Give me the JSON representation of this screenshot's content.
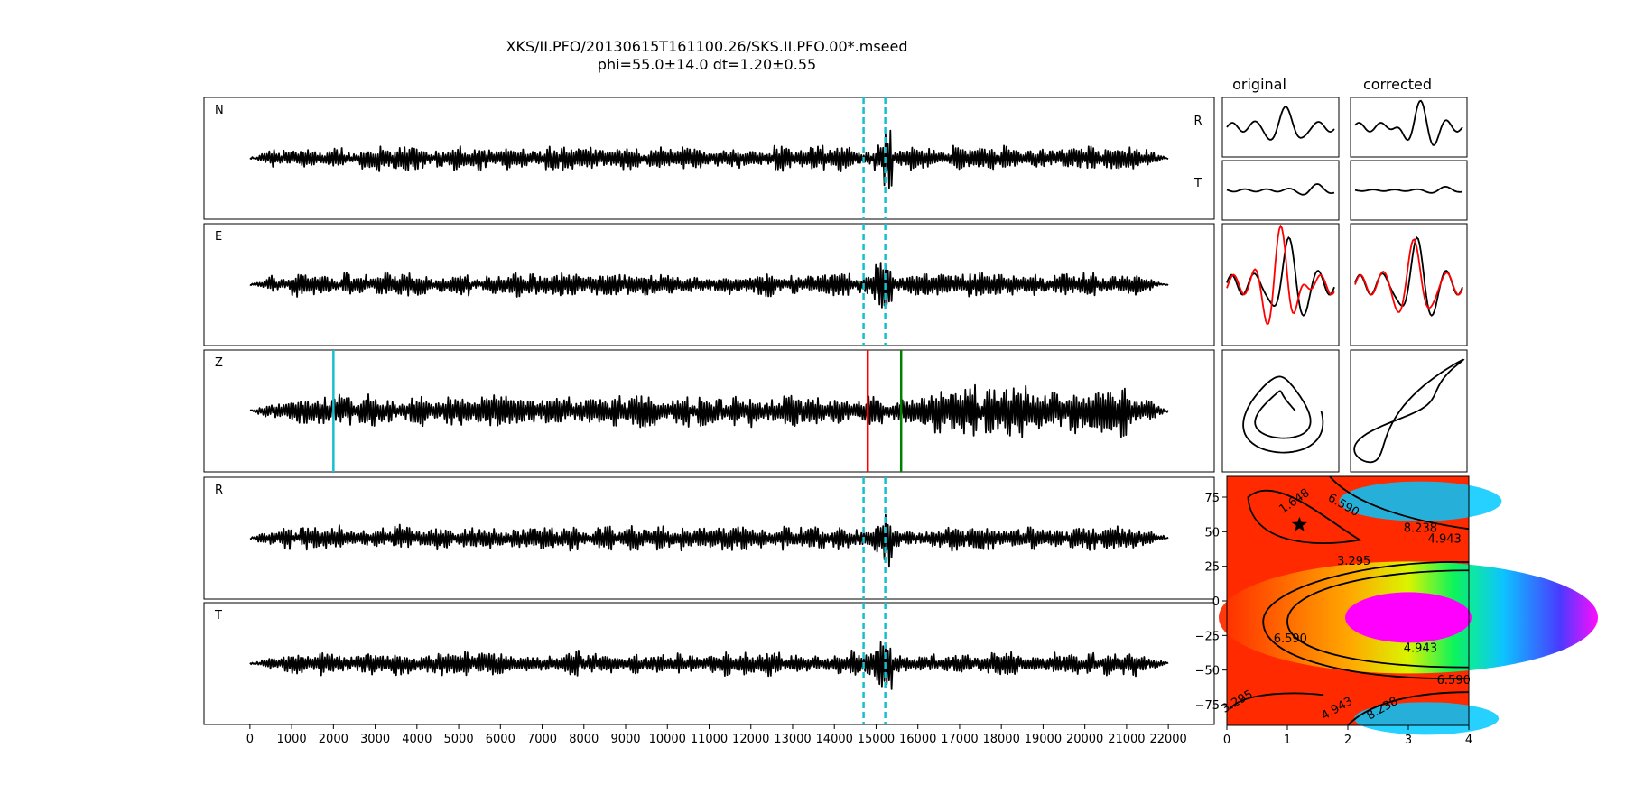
{
  "figure": {
    "title_line1": "XKS/II.PFO/20130615T161100.26/SKS.II.PFO.00*.mseed",
    "title_line2": "phi=55.0±14.0 dt=1.20±0.55"
  },
  "colors": {
    "trace": "#000000",
    "pick_window": "#17becf",
    "pick_cyan": "#17becf",
    "pick_red": "#ff0000",
    "pick_green": "#008000",
    "radial_overlay": "#ff0000"
  },
  "chart_data": [
    {
      "type": "line",
      "name": "component-traces",
      "panels": [
        "N",
        "E",
        "Z",
        "R",
        "T"
      ],
      "x_ticks": [
        0,
        1000,
        2000,
        3000,
        4000,
        5000,
        6000,
        7000,
        8000,
        9000,
        10000,
        11000,
        12000,
        13000,
        14000,
        15000,
        16000,
        17000,
        18000,
        19000,
        20000,
        21000,
        22000
      ],
      "xlim": [
        -1100,
        23100
      ],
      "trace_span": [
        0,
        22000
      ],
      "window_markers": [
        14700,
        15220
      ],
      "window_marker_panels": [
        "N",
        "E",
        "R",
        "T"
      ],
      "z_picks": [
        {
          "x": 2000,
          "color": "#17becf"
        },
        {
          "x": 14800,
          "color": "#ff0000"
        },
        {
          "x": 15600,
          "color": "#008000"
        }
      ]
    },
    {
      "type": "line",
      "name": "particle-panels",
      "column_titles": [
        "original",
        "corrected"
      ],
      "row_labels": [
        "R",
        "T"
      ]
    },
    {
      "type": "heatmap",
      "name": "error-surface",
      "xlim": [
        0,
        4
      ],
      "ylim": [
        -90,
        90
      ],
      "x_ticks": [
        "0",
        "1",
        "2",
        "3",
        "4"
      ],
      "y_ticks": [
        "75",
        "50",
        "25",
        "0",
        "−25",
        "−50",
        "−75"
      ],
      "y_tick_values": [
        75,
        50,
        25,
        0,
        -25,
        -50,
        -75
      ],
      "contour_labels": [
        "1.648",
        "3.295",
        "4.943",
        "6.590",
        "8.238"
      ],
      "best_fit": {
        "dt": 1.2,
        "phi": 55.0
      }
    }
  ]
}
